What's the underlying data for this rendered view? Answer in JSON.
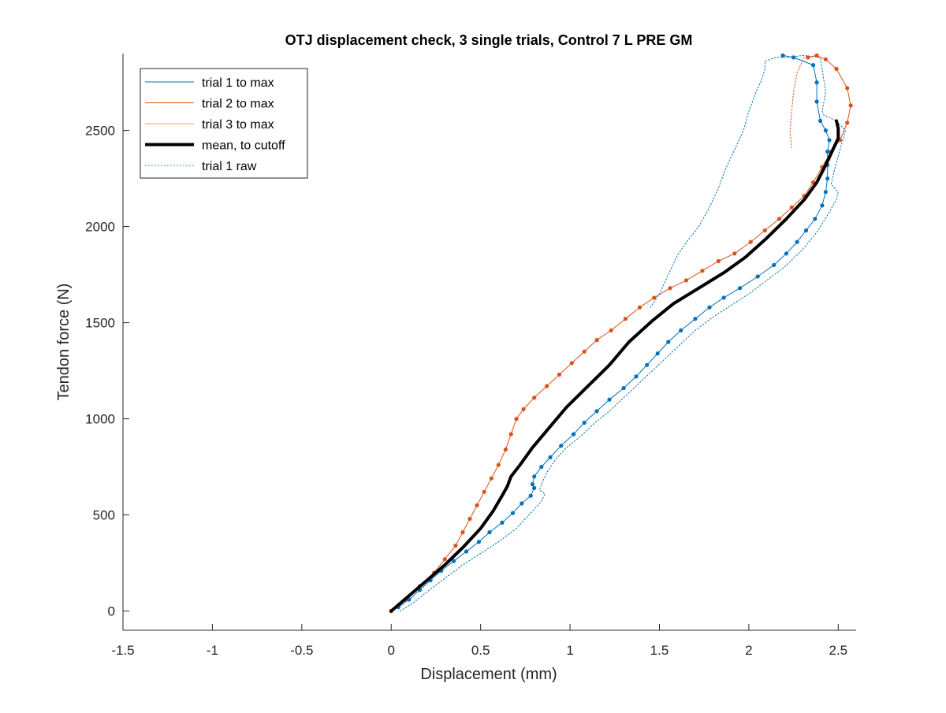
{
  "chart_data": {
    "type": "line",
    "title": "OTJ displacement check, 3 single trials, Control 7 L PRE GM",
    "xlabel": "Displacement (mm)",
    "ylabel": "Tendon force (N)",
    "xlim": [
      -1.5,
      2.6
    ],
    "ylim": [
      -100,
      2900
    ],
    "xticks": [
      -1.5,
      -1,
      -0.5,
      0,
      0.5,
      1,
      1.5,
      2,
      2.5
    ],
    "xtick_labels": [
      "-1.5",
      "-1",
      "-0.5",
      "0",
      "0.5",
      "1",
      "1.5",
      "2",
      "2.5"
    ],
    "yticks": [
      0,
      500,
      1000,
      1500,
      2000,
      2500
    ],
    "ytick_labels": [
      "0",
      "500",
      "1000",
      "1500",
      "2000",
      "2500"
    ],
    "grid": false,
    "legend_position": "top-left",
    "legend": [
      {
        "label": "trial 1 to max",
        "color": "#0072BD",
        "style": "solid",
        "width": 1
      },
      {
        "label": "trial 2 to max",
        "color": "#D95319",
        "style": "solid",
        "width": 1
      },
      {
        "label": "trial 3 to max",
        "color": "#EDB120",
        "style": "solid",
        "width": 1
      },
      {
        "label": "mean, to cutoff",
        "color": "#000000",
        "style": "solid",
        "width": 4
      },
      {
        "label": "trial 1 raw",
        "color": "#0072BD",
        "style": "dotted",
        "width": 1
      }
    ],
    "series": [
      {
        "name": "trial 1 to max",
        "color": "#0072BD",
        "style": "solid",
        "markers": true,
        "points": [
          [
            0,
            0
          ],
          [
            0.04,
            20
          ],
          [
            0.1,
            60
          ],
          [
            0.16,
            110
          ],
          [
            0.22,
            160
          ],
          [
            0.28,
            210
          ],
          [
            0.35,
            260
          ],
          [
            0.42,
            310
          ],
          [
            0.49,
            360
          ],
          [
            0.55,
            410
          ],
          [
            0.62,
            460
          ],
          [
            0.68,
            510
          ],
          [
            0.73,
            560
          ],
          [
            0.78,
            600
          ],
          [
            0.8,
            640
          ],
          [
            0.79,
            660
          ],
          [
            0.8,
            700
          ],
          [
            0.84,
            750
          ],
          [
            0.89,
            800
          ],
          [
            0.95,
            860
          ],
          [
            1.02,
            920
          ],
          [
            1.08,
            980
          ],
          [
            1.15,
            1040
          ],
          [
            1.22,
            1100
          ],
          [
            1.3,
            1160
          ],
          [
            1.37,
            1220
          ],
          [
            1.43,
            1280
          ],
          [
            1.49,
            1340
          ],
          [
            1.55,
            1400
          ],
          [
            1.62,
            1460
          ],
          [
            1.7,
            1520
          ],
          [
            1.78,
            1580
          ],
          [
            1.86,
            1630
          ],
          [
            1.95,
            1680
          ],
          [
            2.05,
            1740
          ],
          [
            2.14,
            1800
          ],
          [
            2.21,
            1860
          ],
          [
            2.27,
            1920
          ],
          [
            2.32,
            1980
          ],
          [
            2.37,
            2040
          ],
          [
            2.41,
            2110
          ],
          [
            2.43,
            2180
          ],
          [
            2.44,
            2250
          ],
          [
            2.44,
            2320
          ],
          [
            2.44,
            2390
          ],
          [
            2.45,
            2450
          ],
          [
            2.43,
            2500
          ],
          [
            2.4,
            2550
          ],
          [
            2.38,
            2650
          ],
          [
            2.38,
            2750
          ],
          [
            2.36,
            2840
          ],
          [
            2.25,
            2880
          ],
          [
            2.19,
            2890
          ]
        ]
      },
      {
        "name": "trial 2 to max",
        "color": "#D95319",
        "style": "solid",
        "markers": true,
        "points": [
          [
            0,
            0
          ],
          [
            0.08,
            60
          ],
          [
            0.16,
            130
          ],
          [
            0.24,
            200
          ],
          [
            0.3,
            270
          ],
          [
            0.36,
            340
          ],
          [
            0.4,
            410
          ],
          [
            0.44,
            480
          ],
          [
            0.48,
            550
          ],
          [
            0.52,
            620
          ],
          [
            0.56,
            690
          ],
          [
            0.6,
            760
          ],
          [
            0.64,
            840
          ],
          [
            0.67,
            920
          ],
          [
            0.7,
            1000
          ],
          [
            0.74,
            1050
          ],
          [
            0.8,
            1110
          ],
          [
            0.87,
            1170
          ],
          [
            0.94,
            1230
          ],
          [
            1.01,
            1290
          ],
          [
            1.08,
            1350
          ],
          [
            1.15,
            1410
          ],
          [
            1.23,
            1460
          ],
          [
            1.31,
            1520
          ],
          [
            1.39,
            1580
          ],
          [
            1.47,
            1630
          ],
          [
            1.56,
            1680
          ],
          [
            1.65,
            1720
          ],
          [
            1.74,
            1770
          ],
          [
            1.83,
            1820
          ],
          [
            1.92,
            1860
          ],
          [
            2.01,
            1920
          ],
          [
            2.09,
            1980
          ],
          [
            2.17,
            2040
          ],
          [
            2.24,
            2100
          ],
          [
            2.31,
            2160
          ],
          [
            2.36,
            2230
          ],
          [
            2.41,
            2310
          ],
          [
            2.46,
            2390
          ],
          [
            2.51,
            2450
          ],
          [
            2.55,
            2540
          ],
          [
            2.57,
            2630
          ],
          [
            2.55,
            2720
          ],
          [
            2.49,
            2820
          ],
          [
            2.43,
            2870
          ],
          [
            2.38,
            2890
          ],
          [
            2.33,
            2880
          ]
        ]
      },
      {
        "name": "trial 2 return",
        "color": "#D95319",
        "style": "dotted",
        "markers": false,
        "points": [
          [
            2.31,
            2880
          ],
          [
            2.27,
            2800
          ],
          [
            2.25,
            2700
          ],
          [
            2.24,
            2600
          ],
          [
            2.23,
            2500
          ],
          [
            2.24,
            2400
          ]
        ]
      },
      {
        "name": "trial 3 to max",
        "color": "#EDB120",
        "style": "solid",
        "markers": false,
        "points": []
      },
      {
        "name": "mean, to cutoff",
        "color": "#000000",
        "style": "solid",
        "markers": false,
        "points": [
          [
            0,
            0
          ],
          [
            0.1,
            80
          ],
          [
            0.2,
            160
          ],
          [
            0.3,
            240
          ],
          [
            0.4,
            330
          ],
          [
            0.5,
            430
          ],
          [
            0.57,
            520
          ],
          [
            0.62,
            600
          ],
          [
            0.65,
            650
          ],
          [
            0.67,
            700
          ],
          [
            0.72,
            760
          ],
          [
            0.79,
            850
          ],
          [
            0.88,
            950
          ],
          [
            0.98,
            1060
          ],
          [
            1.1,
            1170
          ],
          [
            1.22,
            1280
          ],
          [
            1.33,
            1400
          ],
          [
            1.46,
            1510
          ],
          [
            1.58,
            1600
          ],
          [
            1.72,
            1680
          ],
          [
            1.86,
            1760
          ],
          [
            1.98,
            1840
          ],
          [
            2.1,
            1940
          ],
          [
            2.21,
            2040
          ],
          [
            2.31,
            2140
          ],
          [
            2.38,
            2230
          ],
          [
            2.43,
            2320
          ],
          [
            2.47,
            2400
          ],
          [
            2.5,
            2460
          ],
          [
            2.5,
            2510
          ],
          [
            2.49,
            2550
          ]
        ]
      },
      {
        "name": "trial 1 raw",
        "color": "#0072BD",
        "style": "dotted",
        "markers": false,
        "points": [
          [
            0.05,
            0
          ],
          [
            0.12,
            40
          ],
          [
            0.2,
            100
          ],
          [
            0.3,
            170
          ],
          [
            0.4,
            240
          ],
          [
            0.5,
            300
          ],
          [
            0.6,
            360
          ],
          [
            0.7,
            430
          ],
          [
            0.78,
            510
          ],
          [
            0.84,
            570
          ],
          [
            0.86,
            610
          ],
          [
            0.83,
            630
          ],
          [
            0.84,
            660
          ],
          [
            0.87,
            720
          ],
          [
            0.92,
            790
          ],
          [
            0.98,
            850
          ],
          [
            1.06,
            910
          ],
          [
            1.14,
            980
          ],
          [
            1.22,
            1040
          ],
          [
            1.3,
            1110
          ],
          [
            1.38,
            1180
          ],
          [
            1.46,
            1250
          ],
          [
            1.54,
            1320
          ],
          [
            1.62,
            1390
          ],
          [
            1.7,
            1460
          ],
          [
            1.8,
            1530
          ],
          [
            1.9,
            1590
          ],
          [
            2.0,
            1650
          ],
          [
            2.1,
            1720
          ],
          [
            2.2,
            1790
          ],
          [
            2.3,
            1880
          ],
          [
            2.38,
            1970
          ],
          [
            2.44,
            2060
          ],
          [
            2.49,
            2140
          ],
          [
            2.5,
            2180
          ],
          [
            2.46,
            2220
          ],
          [
            2.48,
            2300
          ],
          [
            2.51,
            2400
          ],
          [
            2.54,
            2500
          ],
          [
            2.49,
            2550
          ],
          [
            2.42,
            2580
          ],
          [
            2.41,
            2600
          ],
          [
            2.43,
            2700
          ],
          [
            2.4,
            2880
          ],
          [
            2.3,
            2890
          ],
          [
            2.22,
            2880
          ],
          [
            2.15,
            2880
          ],
          [
            2.09,
            2860
          ],
          [
            2.09,
            2820
          ],
          [
            2.07,
            2760
          ],
          [
            2.04,
            2700
          ],
          [
            2.0,
            2600
          ],
          [
            1.97,
            2500
          ],
          [
            1.92,
            2400
          ],
          [
            1.87,
            2300
          ],
          [
            1.83,
            2200
          ],
          [
            1.78,
            2100
          ],
          [
            1.72,
            2000
          ],
          [
            1.66,
            1930
          ],
          [
            1.6,
            1850
          ],
          [
            1.55,
            1750
          ],
          [
            1.5,
            1650
          ],
          [
            1.45,
            1580
          ]
        ]
      }
    ]
  }
}
